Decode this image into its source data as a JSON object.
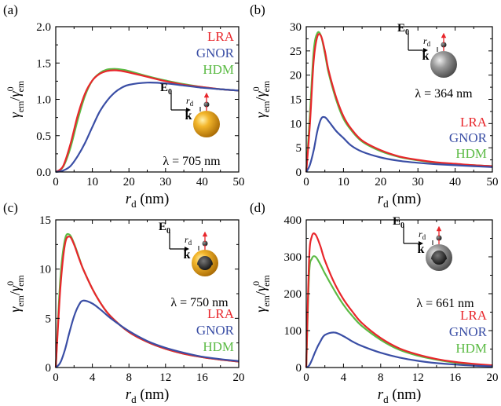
{
  "panels": [
    {
      "label": "(a)",
      "legend": [
        "LRA",
        "GNOR",
        "HDM"
      ],
      "wavelength": "λ = 705 nm",
      "particle": "gold-sphere",
      "field_label": "E",
      "field_sub": "0",
      "k_label": "k",
      "rd_label": "r",
      "rd_sub": "d"
    },
    {
      "label": "(b)",
      "legend": [
        "LRA",
        "GNOR",
        "HDM"
      ],
      "wavelength": "λ = 364 nm",
      "particle": "silver-sphere",
      "field_label": "E",
      "field_sub": "0",
      "k_label": "k",
      "rd_label": "r",
      "rd_sub": "d"
    },
    {
      "label": "(c)",
      "legend": [
        "LRA",
        "GNOR",
        "HDM"
      ],
      "wavelength": "λ = 750 nm",
      "particle": "gold-shell",
      "field_label": "E",
      "field_sub": "0",
      "k_label": "k",
      "rd_label": "r",
      "rd_sub": "d"
    },
    {
      "label": "(d)",
      "legend": [
        "LRA",
        "GNOR",
        "HDM"
      ],
      "wavelength": "λ = 661 nm",
      "particle": "silver-shell",
      "field_label": "E",
      "field_sub": "0",
      "k_label": "k",
      "rd_label": "r",
      "rd_sub": "d"
    }
  ],
  "colors": {
    "LRA": "#e8262b",
    "GNOR": "#3a4ea5",
    "HDM": "#5cbb45"
  },
  "chart_data": [
    {
      "type": "line",
      "panel": "(a)",
      "xlabel": "r_d (nm)",
      "ylabel": "γ_em/γ_em^0",
      "xlim": [
        0,
        50
      ],
      "ylim": [
        0,
        2.0
      ],
      "xticks": [
        0,
        10,
        20,
        30,
        40,
        50
      ],
      "yticks": [
        0.0,
        0.5,
        1.0,
        1.5,
        2.0
      ],
      "ytick_labels": [
        "0.0",
        "0.5",
        "1.0",
        "1.5",
        "2.0"
      ],
      "legend_position": "top-right",
      "x": [
        0,
        2,
        4,
        6,
        8,
        10,
        12,
        14,
        16,
        18,
        20,
        25,
        30,
        35,
        40,
        45,
        50
      ],
      "series": [
        {
          "name": "LRA",
          "values": [
            0,
            0.08,
            0.38,
            0.78,
            1.08,
            1.26,
            1.35,
            1.39,
            1.4,
            1.39,
            1.37,
            1.31,
            1.25,
            1.2,
            1.17,
            1.14,
            1.12
          ]
        },
        {
          "name": "GNOR",
          "values": [
            0,
            0.02,
            0.08,
            0.22,
            0.4,
            0.62,
            0.83,
            0.98,
            1.09,
            1.16,
            1.2,
            1.23,
            1.22,
            1.19,
            1.16,
            1.14,
            1.12
          ]
        },
        {
          "name": "HDM",
          "values": [
            0,
            0.07,
            0.33,
            0.72,
            1.05,
            1.26,
            1.36,
            1.41,
            1.42,
            1.41,
            1.39,
            1.32,
            1.26,
            1.21,
            1.17,
            1.14,
            1.12
          ]
        }
      ]
    },
    {
      "type": "line",
      "panel": "(b)",
      "xlabel": "r_d (nm)",
      "ylabel": "γ_em/γ_em^0",
      "xlim": [
        0,
        50
      ],
      "ylim": [
        0,
        30
      ],
      "xticks": [
        0,
        10,
        20,
        30,
        40,
        50
      ],
      "yticks": [
        0,
        5,
        10,
        15,
        20,
        25,
        30
      ],
      "ytick_labels": [
        "0",
        "5",
        "10",
        "15",
        "20",
        "25",
        "30"
      ],
      "legend_position": "right",
      "x": [
        0,
        1,
        2,
        3,
        4,
        5,
        6,
        8,
        10,
        12,
        15,
        20,
        25,
        30,
        35,
        40,
        45,
        50
      ],
      "series": [
        {
          "name": "LRA",
          "values": [
            0,
            10,
            23,
            28,
            28,
            25,
            21,
            15.5,
            11.5,
            9,
            6.5,
            4.5,
            3.2,
            2.5,
            2.0,
            1.7,
            1.4,
            1.2
          ]
        },
        {
          "name": "GNOR",
          "values": [
            0,
            1.5,
            4.5,
            8.5,
            11,
            11.3,
            10.5,
            8.5,
            7,
            5.5,
            4.2,
            3.0,
            2.3,
            1.9,
            1.6,
            1.4,
            1.2,
            1.0
          ]
        },
        {
          "name": "HDM",
          "values": [
            0,
            12,
            25,
            28.7,
            28,
            24.5,
            20.5,
            15,
            11,
            8.7,
            6.3,
            4.3,
            3.1,
            2.4,
            1.9,
            1.6,
            1.4,
            1.2
          ]
        }
      ]
    },
    {
      "type": "line",
      "panel": "(c)",
      "xlabel": "r_d (nm)",
      "ylabel": "γ_em/γ_em^0",
      "xlim": [
        0,
        20
      ],
      "ylim": [
        0,
        15
      ],
      "xticks": [
        0,
        4,
        8,
        12,
        16,
        20
      ],
      "yticks": [
        0,
        5,
        10,
        15
      ],
      "ytick_labels": [
        "0",
        "5",
        "10",
        "15"
      ],
      "legend_position": "bottom-right",
      "x": [
        0,
        0.5,
        1,
        1.5,
        2,
        2.5,
        3,
        4,
        5,
        6,
        8,
        10,
        12,
        14,
        16,
        18,
        20
      ],
      "series": [
        {
          "name": "LRA",
          "values": [
            0,
            8,
            12.5,
            13.3,
            12.5,
            11.2,
            10,
            8,
            6.4,
            5.2,
            3.6,
            2.6,
            1.9,
            1.4,
            1.05,
            0.8,
            0.6
          ]
        },
        {
          "name": "GNOR",
          "values": [
            0,
            0.5,
            1.8,
            3.6,
            5.2,
            6.3,
            6.8,
            6.5,
            5.8,
            5.0,
            3.7,
            2.7,
            2.0,
            1.5,
            1.1,
            0.85,
            0.65
          ]
        },
        {
          "name": "HDM",
          "values": [
            0,
            9,
            13,
            13.5,
            12.6,
            11.3,
            10,
            8,
            6.4,
            5.2,
            3.6,
            2.6,
            1.9,
            1.4,
            1.05,
            0.8,
            0.6
          ]
        }
      ]
    },
    {
      "type": "line",
      "panel": "(d)",
      "xlabel": "r_d (nm)",
      "ylabel": "γ_em/γ_em^0",
      "xlim": [
        0,
        20
      ],
      "ylim": [
        0,
        400
      ],
      "xticks": [
        0,
        4,
        8,
        12,
        16,
        20
      ],
      "yticks": [
        0,
        100,
        200,
        300,
        400
      ],
      "ytick_labels": [
        "0",
        "100",
        "200",
        "300",
        "400"
      ],
      "legend_position": "bottom-right",
      "x": [
        0,
        0.3,
        0.6,
        1,
        1.5,
        2,
        3,
        4,
        5,
        6,
        8,
        10,
        12,
        14,
        16,
        18,
        20
      ],
      "series": [
        {
          "name": "LRA",
          "values": [
            0,
            290,
            355,
            360,
            330,
            290,
            230,
            185,
            150,
            120,
            80,
            52,
            35,
            23,
            15,
            10,
            6
          ]
        },
        {
          "name": "GNOR",
          "values": [
            0,
            5,
            20,
            45,
            70,
            88,
            95,
            85,
            70,
            58,
            40,
            27,
            18,
            12,
            8,
            5,
            3
          ]
        },
        {
          "name": "HDM",
          "values": [
            0,
            250,
            295,
            300,
            280,
            255,
            210,
            170,
            138,
            112,
            75,
            48,
            32,
            21,
            13,
            8,
            5
          ]
        }
      ]
    }
  ]
}
